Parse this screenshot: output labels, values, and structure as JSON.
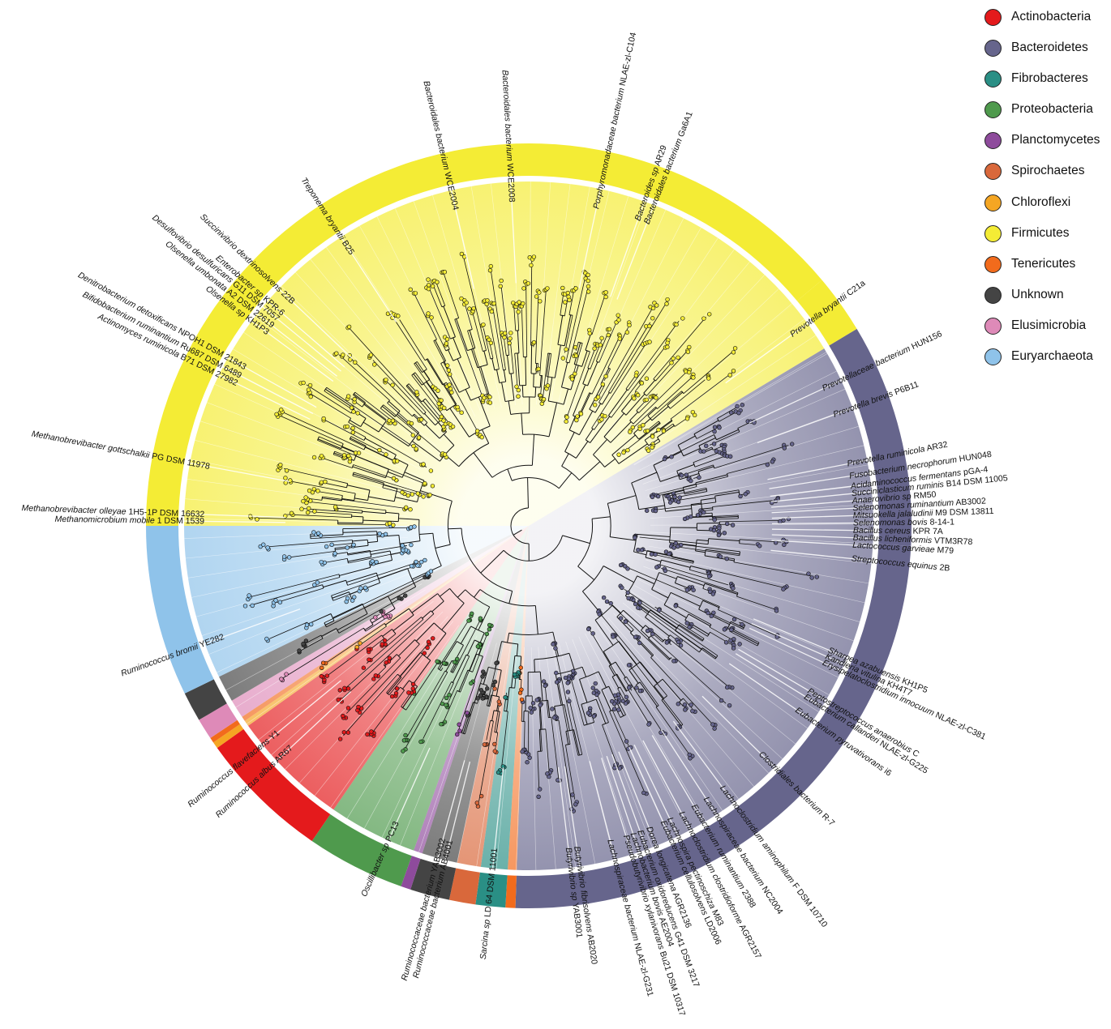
{
  "legend": {
    "items": [
      {
        "label": "Actinobacteria",
        "color": "#e41a1c"
      },
      {
        "label": "Bacteroidetes",
        "color": "#66658c"
      },
      {
        "label": "Fibrobacteres",
        "color": "#2a8f85"
      },
      {
        "label": "Proteobacteria",
        "color": "#4f9a4d"
      },
      {
        "label": "Planctomycetes",
        "color": "#8e4b9c"
      },
      {
        "label": "Spirochaetes",
        "color": "#d9683b"
      },
      {
        "label": "Chloroflexi",
        "color": "#f5a623"
      },
      {
        "label": "Firmicutes",
        "color": "#f4ec35"
      },
      {
        "label": "Tenericutes",
        "color": "#f26b1c"
      },
      {
        "label": "Unknown",
        "color": "#444444"
      },
      {
        "label": "Elusimicrobia",
        "color": "#de8ab8"
      },
      {
        "label": "Euryarchaeota",
        "color": "#8fc3ea"
      }
    ]
  },
  "sectors": [
    {
      "phylum": "Bacteroidetes",
      "start": 59,
      "end": 93
    },
    {
      "phylum": "Bacteroidetes",
      "start": 93,
      "end": 182
    },
    {
      "phylum": "Tenericutes",
      "start": 182,
      "end": 183.5
    },
    {
      "phylum": "Fibrobacteres",
      "start": 183.5,
      "end": 188
    },
    {
      "phylum": "Spirochaetes",
      "start": 188,
      "end": 192
    },
    {
      "phylum": "Unknown",
      "start": 192,
      "end": 198
    },
    {
      "phylum": "Planctomycetes",
      "start": 198,
      "end": 199.5
    },
    {
      "phylum": "Proteobacteria",
      "start": 199.5,
      "end": 214.5
    },
    {
      "phylum": "Actinobacteria",
      "start": 214.5,
      "end": 234.5
    },
    {
      "phylum": "Chloroflexi",
      "start": 234.5,
      "end": 235.5
    },
    {
      "phylum": "Tenericutes",
      "start": 235.5,
      "end": 236.3
    },
    {
      "phylum": "Elusimicrobia",
      "start": 236.3,
      "end": 239.5
    },
    {
      "phylum": "Unknown",
      "start": 239.5,
      "end": 244
    },
    {
      "phylum": "Euryarchaeota",
      "start": 244,
      "end": 270
    },
    {
      "phylum": "Firmicutes",
      "start": 270,
      "end": 410
    },
    {
      "phylum": "Firmicutes",
      "start": 410,
      "end": 419
    }
  ],
  "taxa": [
    {
      "label": "Bacteroidales bacterium WCE2004",
      "angle": 347
    },
    {
      "label": "Bacteroidales bacterium WCE2008",
      "angle": 357
    },
    {
      "label": "Porphyromonadaceae bacterium NLAE-zl-C104",
      "angle": 12
    },
    {
      "label": "Bacteroides sp AR29",
      "angle": 19.6
    },
    {
      "label": "Bacteroidales bacterium Ga6A1",
      "angle": 21.3
    },
    {
      "label": "Prevotella bryantii C21a",
      "angle": 54
    },
    {
      "label": "Prevotellaceae bacterium HUN156",
      "angle": 65
    },
    {
      "label": "Prevotella brevis P6B11",
      "angle": 70
    },
    {
      "label": "Prevotella ruminicola AR32",
      "angle": 79
    },
    {
      "label": "Fusobacterium necrophorum HUN048",
      "angle": 81.2
    },
    {
      "label": "Acidaminococcus fermentans pGA-4",
      "angle": 83
    },
    {
      "label": "Succiniclasticum ruminis B14 DSM 11005",
      "angle": 84.3
    },
    {
      "label": "Anaerovibrio sp RM50",
      "angle": 85.6
    },
    {
      "label": "Selenomonas ruminantium AB3002",
      "angle": 86.9
    },
    {
      "label": "Mitsuokella jalaludinii M9 DSM 13811",
      "angle": 88.2
    },
    {
      "label": "Selenomonas bovis 8-14-1",
      "angle": 89.5
    },
    {
      "label": "Bacillus cereus KPR 7A",
      "angle": 90.8
    },
    {
      "label": "Bacillus licheniformis VTM3R78",
      "angle": 92.1
    },
    {
      "label": "Lactococcus garvieae M79",
      "angle": 93.4
    },
    {
      "label": "Streptococcus equinus 2B",
      "angle": 95.8
    },
    {
      "label": "Sharpea azabuensis KH1P5",
      "angle": 112.5
    },
    {
      "label": "Kandleria vitulina KH4T7",
      "angle": 113.7
    },
    {
      "label": "Erysipelatoclostridium innocuum NLAE-zl-C381",
      "angle": 114.9
    },
    {
      "label": "Peptostreptococcus anaerobius C",
      "angle": 120.5
    },
    {
      "label": "Eubacterium callanderi NLAE-zl-G225",
      "angle": 121.7
    },
    {
      "label": "Eubacterium pyruvativorans i6",
      "angle": 124.5
    },
    {
      "label": "Clostridiales bacterium R-7",
      "angle": 134.5
    },
    {
      "label": "Lachnoclostridium aminophilum F DSM 10710",
      "angle": 143.5
    },
    {
      "label": "Lachnospiraceae bacterium NC2004",
      "angle": 147
    },
    {
      "label": "Eubacterium ruminantium 2388",
      "angle": 149.5
    },
    {
      "label": "Lachnoclostridium clostridioforme AGR2157",
      "angle": 152
    },
    {
      "label": "Lachnospira pectinoschiza M83",
      "angle": 154.3
    },
    {
      "label": "Eubacterium cellulosolvens LD2006",
      "angle": 155.6
    },
    {
      "label": "Dorea longicatena AGR2136",
      "angle": 158.3
    },
    {
      "label": "Eubacterium oxidoreducens G41 DSM 3217",
      "angle": 160
    },
    {
      "label": "Lachnobacterium bovis AE2004",
      "angle": 161.3
    },
    {
      "label": "Pseudobutyrivibrio xylanivorans Bu21 DSM 10317",
      "angle": 162.6
    },
    {
      "label": "Lachnospiraceae bacterium NLAE-zl-G231",
      "angle": 165.5
    },
    {
      "label": "Butyrivibrio fibrisolvens AB2020",
      "angle": 171.5
    },
    {
      "label": "Butyrivibrio sp YAB3001",
      "angle": 173
    },
    {
      "label": "Sarcina sp LD 64 DSM 11001",
      "angle": 186
    },
    {
      "label": "Ruminococcaceae bacterium AB4001",
      "angle": 194
    },
    {
      "label": "Ruminococcaceae bacterium YAB3002",
      "angle": 195.3
    },
    {
      "label": "Oscillibacter sp PC13",
      "angle": 204
    },
    {
      "label": "Ruminococcus albus AR67",
      "angle": 227
    },
    {
      "label": "Ruminococcus flavefaciens Y1",
      "angle": 230.5
    },
    {
      "label": "Ruminococcus bromii YE282",
      "angle": 250
    },
    {
      "label": "Methanomicrobium mobile 1 DSM 1539",
      "angle": 270.8
    },
    {
      "label": "Methanobrevibacter olleyae 1H5-1P DSM 16632",
      "angle": 272
    },
    {
      "label": "Methanobrevibacter gottschalkii PG DSM 11978",
      "angle": 280.5
    },
    {
      "label": "Actinomyces ruminicola B71 DSM 27982",
      "angle": 296
    },
    {
      "label": "Bifidobacterium ruminantium Ru687 DSM 6489",
      "angle": 297.5
    },
    {
      "label": "Denitrobacterium detoxificans NPOH1 DSM 21843",
      "angle": 299.2
    },
    {
      "label": "Olsenella sp KH1P3",
      "angle": 306.5
    },
    {
      "label": "Olsenella umbonata A2 DSM 22619",
      "angle": 308
    },
    {
      "label": "Desulfovibrio desulfuricans G11 DSM 7057",
      "angle": 309.5
    },
    {
      "label": "Enterobacter sp KPR-6",
      "angle": 310.8
    },
    {
      "label": "Succinivibrio dextrinosolvens 22B",
      "angle": 313.5
    },
    {
      "label": "Treponema bryantii B25",
      "angle": 327
    }
  ]
}
